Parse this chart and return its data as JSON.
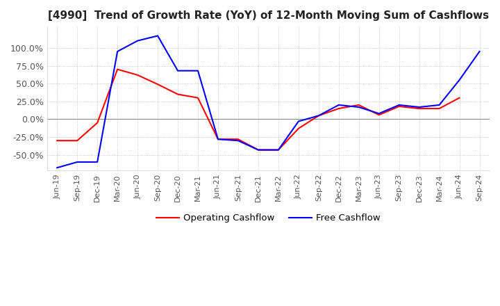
{
  "title": "[4990]  Trend of Growth Rate (YoY) of 12-Month Moving Sum of Cashflows",
  "title_fontsize": 11,
  "ylim": [
    -0.72,
    1.3
  ],
  "ytick_labels": [
    "-50.0%",
    "-25.0%",
    "0.0%",
    "25.0%",
    "50.0%",
    "75.0%",
    "100.0%"
  ],
  "ytick_values": [
    -0.5,
    -0.25,
    0.0,
    0.25,
    0.5,
    0.75,
    1.0
  ],
  "background_color": "#ffffff",
  "grid_color": "#aaaaaa",
  "zero_line_color": "#888888",
  "operating_color": "#ff0000",
  "free_color": "#0000ff",
  "legend_labels": [
    "Operating Cashflow",
    "Free Cashflow"
  ],
  "x_labels": [
    "Jun-19",
    "Sep-19",
    "Dec-19",
    "Mar-20",
    "Jun-20",
    "Sep-20",
    "Dec-20",
    "Mar-21",
    "Jun-21",
    "Sep-21",
    "Dec-21",
    "Mar-22",
    "Jun-22",
    "Sep-22",
    "Dec-22",
    "Mar-23",
    "Jun-23",
    "Sep-23",
    "Dec-23",
    "Mar-24",
    "Jun-24",
    "Sep-24"
  ],
  "operating_cashflow": [
    -0.3,
    -0.3,
    -0.05,
    0.7,
    0.62,
    0.49,
    0.35,
    0.3,
    -0.28,
    -0.28,
    -0.43,
    -0.43,
    -0.13,
    0.05,
    0.15,
    0.2,
    0.06,
    0.18,
    0.15,
    0.15,
    0.3,
    null
  ],
  "free_cashflow": [
    -0.68,
    -0.6,
    -0.6,
    0.95,
    1.1,
    1.17,
    0.68,
    0.68,
    -0.28,
    -0.3,
    -0.43,
    -0.43,
    -0.03,
    0.05,
    0.2,
    0.17,
    0.08,
    0.2,
    0.17,
    0.2,
    0.55,
    0.95
  ]
}
